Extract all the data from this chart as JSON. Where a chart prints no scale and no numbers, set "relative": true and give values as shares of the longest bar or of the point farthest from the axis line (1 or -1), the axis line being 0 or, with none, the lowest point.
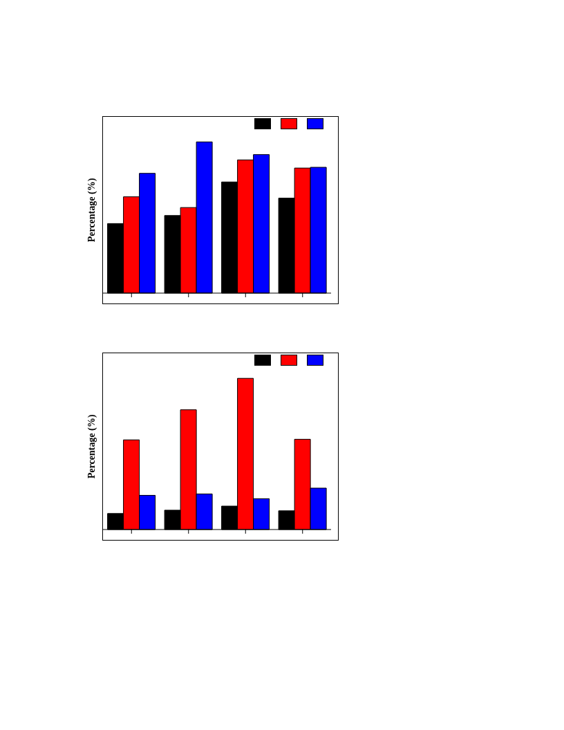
{
  "chart_data": [
    {
      "type": "bar",
      "ylabel": "Percentage (%)",
      "relative": true,
      "categories": [
        null,
        null,
        null,
        null
      ],
      "series": [
        {
          "color": "#000000",
          "values": [
            0.46,
            0.513,
            0.735,
            0.628
          ]
        },
        {
          "color": "#ff0000",
          "values": [
            0.637,
            0.566,
            0.881,
            0.827
          ]
        },
        {
          "color": "#0000ff",
          "values": [
            0.792,
            1,
            0.916,
            0.832
          ]
        }
      ]
    },
    {
      "type": "bar",
      "ylabel": "Percentage (%)",
      "relative": true,
      "categories": [
        null,
        null,
        null,
        null
      ],
      "series": [
        {
          "color": "#000000",
          "values": [
            0.106,
            0.128,
            0.155,
            0.124
          ]
        },
        {
          "color": "#ff0000",
          "values": [
            0.593,
            0.792,
            1,
            0.597
          ]
        },
        {
          "color": "#0000ff",
          "values": [
            0.226,
            0.235,
            0.204,
            0.274
          ]
        }
      ]
    }
  ]
}
